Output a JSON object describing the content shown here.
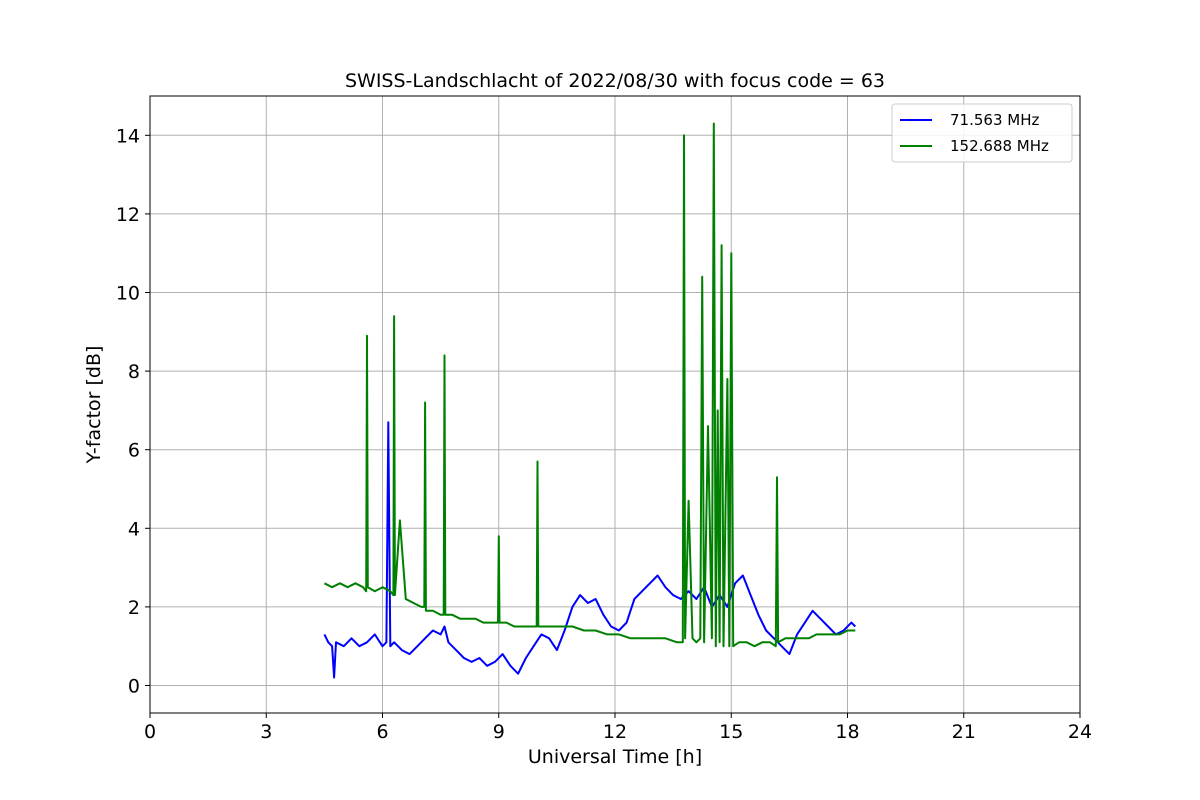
{
  "chart_data": {
    "type": "line",
    "title": "SWISS-Landschlacht of 2022/08/30 with focus code = 63",
    "xlabel": "Universal Time [h]",
    "ylabel": "Y-factor [dB]",
    "xlim": [
      0,
      24
    ],
    "ylim": [
      -0.7,
      15
    ],
    "xticks": [
      0,
      3,
      6,
      9,
      12,
      15,
      18,
      21,
      24
    ],
    "yticks": [
      0,
      2,
      4,
      6,
      8,
      10,
      12,
      14
    ],
    "grid": true,
    "legend_position": "top-right",
    "series": [
      {
        "name": "71.563 MHz",
        "color": "#0000ff",
        "x": [
          4.5,
          4.6,
          4.7,
          4.75,
          4.8,
          5.0,
          5.2,
          5.4,
          5.6,
          5.8,
          6.0,
          6.1,
          6.15,
          6.2,
          6.3,
          6.5,
          6.7,
          6.9,
          7.1,
          7.3,
          7.5,
          7.6,
          7.7,
          7.9,
          8.1,
          8.3,
          8.5,
          8.7,
          8.9,
          9.1,
          9.3,
          9.5,
          9.7,
          9.9,
          10.1,
          10.3,
          10.5,
          10.7,
          10.9,
          11.1,
          11.3,
          11.5,
          11.7,
          11.9,
          12.1,
          12.3,
          12.5,
          12.7,
          12.9,
          13.1,
          13.3,
          13.5,
          13.7,
          13.9,
          14.1,
          14.3,
          14.5,
          14.7,
          14.9,
          15.1,
          15.3,
          15.5,
          15.7,
          15.9,
          16.1,
          16.3,
          16.5,
          16.7,
          16.9,
          17.1,
          17.3,
          17.5,
          17.7,
          17.9,
          18.1,
          18.2
        ],
        "values": [
          1.3,
          1.1,
          1.0,
          0.2,
          1.1,
          1.0,
          1.2,
          1.0,
          1.1,
          1.3,
          1.0,
          1.1,
          6.7,
          1.0,
          1.1,
          0.9,
          0.8,
          1.0,
          1.2,
          1.4,
          1.3,
          1.5,
          1.1,
          0.9,
          0.7,
          0.6,
          0.7,
          0.5,
          0.6,
          0.8,
          0.5,
          0.3,
          0.7,
          1.0,
          1.3,
          1.2,
          0.9,
          1.4,
          2.0,
          2.3,
          2.1,
          2.2,
          1.8,
          1.5,
          1.4,
          1.6,
          2.2,
          2.4,
          2.6,
          2.8,
          2.5,
          2.3,
          2.2,
          2.4,
          2.2,
          2.5,
          2.0,
          2.3,
          2.0,
          2.6,
          2.8,
          2.3,
          1.8,
          1.4,
          1.2,
          1.0,
          0.8,
          1.3,
          1.6,
          1.9,
          1.7,
          1.5,
          1.3,
          1.4,
          1.6,
          1.5
        ]
      },
      {
        "name": "152.688 MHz",
        "color": "#008000",
        "x": [
          4.5,
          4.7,
          4.9,
          5.1,
          5.3,
          5.5,
          5.58,
          5.6,
          5.62,
          5.8,
          6.0,
          6.2,
          6.28,
          6.3,
          6.32,
          6.45,
          6.6,
          6.8,
          7.0,
          7.08,
          7.1,
          7.12,
          7.3,
          7.5,
          7.58,
          7.6,
          7.62,
          7.8,
          8.0,
          8.2,
          8.4,
          8.6,
          8.8,
          8.98,
          9.0,
          9.02,
          9.2,
          9.4,
          9.6,
          9.8,
          9.98,
          10.0,
          10.02,
          10.3,
          10.6,
          10.9,
          11.2,
          11.5,
          11.8,
          12.1,
          12.4,
          12.7,
          13.0,
          13.3,
          13.6,
          13.75,
          13.78,
          13.81,
          13.9,
          14.0,
          14.1,
          14.2,
          14.25,
          14.3,
          14.4,
          14.5,
          14.55,
          14.6,
          14.65,
          14.7,
          14.75,
          14.8,
          14.9,
          14.95,
          15.0,
          15.05,
          15.2,
          15.4,
          15.6,
          15.8,
          16.0,
          16.15,
          16.18,
          16.21,
          16.4,
          16.6,
          16.8,
          17.0,
          17.2,
          17.4,
          17.6,
          17.8,
          18.0,
          18.2
        ],
        "values": [
          2.6,
          2.5,
          2.6,
          2.5,
          2.6,
          2.5,
          2.4,
          8.9,
          2.5,
          2.4,
          2.5,
          2.4,
          2.3,
          9.4,
          2.3,
          4.2,
          2.2,
          2.1,
          2.0,
          2.0,
          7.2,
          1.9,
          1.9,
          1.8,
          1.8,
          8.4,
          1.8,
          1.8,
          1.7,
          1.7,
          1.7,
          1.6,
          1.6,
          1.6,
          3.8,
          1.6,
          1.6,
          1.5,
          1.5,
          1.5,
          1.5,
          5.7,
          1.5,
          1.5,
          1.5,
          1.5,
          1.4,
          1.4,
          1.3,
          1.3,
          1.2,
          1.2,
          1.2,
          1.2,
          1.1,
          1.1,
          14.0,
          1.2,
          4.7,
          1.2,
          1.1,
          1.2,
          10.4,
          1.1,
          6.6,
          1.2,
          14.3,
          1.0,
          7.0,
          1.1,
          11.2,
          1.0,
          7.8,
          1.0,
          11.0,
          1.0,
          1.1,
          1.1,
          1.0,
          1.1,
          1.1,
          1.0,
          5.3,
          1.1,
          1.2,
          1.2,
          1.2,
          1.2,
          1.3,
          1.3,
          1.3,
          1.3,
          1.4,
          1.4
        ]
      }
    ]
  }
}
